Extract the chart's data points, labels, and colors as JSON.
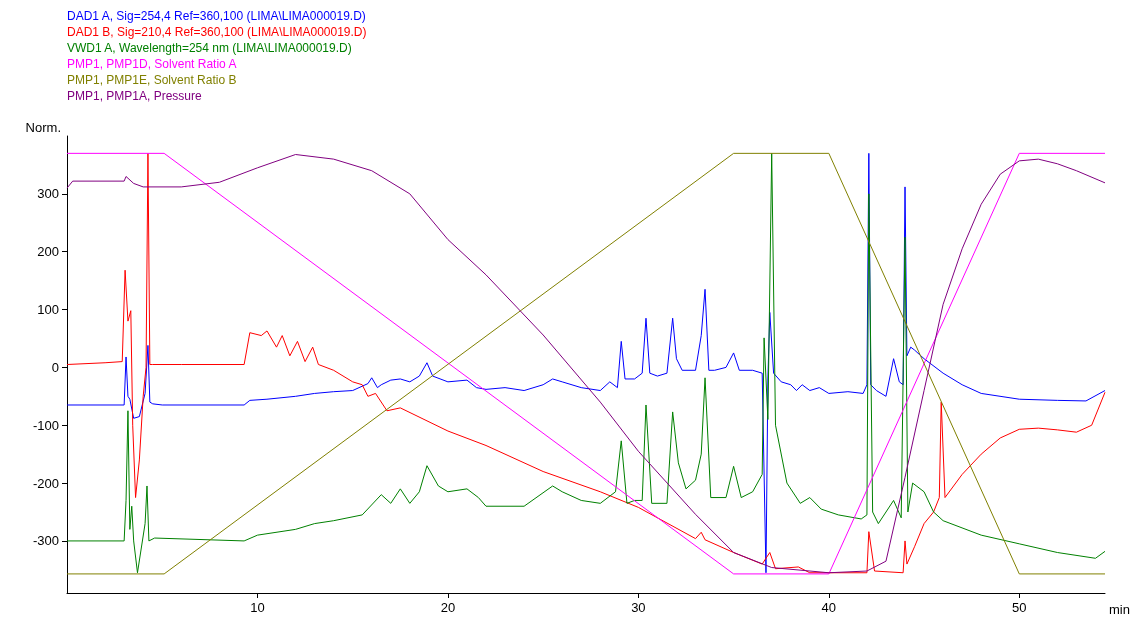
{
  "chart_data": {
    "type": "line",
    "ylabel": "Norm.",
    "xlabel": "min",
    "xlim": [
      0,
      54.5
    ],
    "xticks": [
      10,
      20,
      30,
      40,
      50
    ],
    "ylim": [
      -390,
      400
    ],
    "yticks": [
      -300,
      -200,
      -100,
      0,
      100,
      200,
      300
    ],
    "grid": false,
    "legend": "top left",
    "marker": "none",
    "line_style": "solid",
    "series": [
      {
        "name": "DAD1 A, Sig=254,4 Ref=360,100 (LIMA\\LIMA000019.D)",
        "color": "#0000ff",
        "x": [
          0,
          3,
          3.1,
          3.2,
          3.3,
          3.5,
          3.8,
          4.1,
          4.25,
          4.35,
          4.5,
          5,
          9.3,
          9.6,
          10.5,
          12,
          13,
          14,
          15,
          15.8,
          16,
          16.3,
          16.5,
          17,
          17.5,
          18,
          18.5,
          18.9,
          19.2,
          20,
          21,
          21.5,
          22,
          23,
          24,
          25,
          25.5,
          26,
          27,
          28,
          28.5,
          28.9,
          29.1,
          29.3,
          29.8,
          30.2,
          30.4,
          30.6,
          31,
          31.5,
          31.8,
          32,
          32.3,
          33,
          33.3,
          33.5,
          33.7,
          34,
          34.6,
          35,
          35.3,
          36,
          36.5,
          36.7,
          36.8,
          36.9,
          37.1,
          37.5,
          38,
          38.3,
          38.6,
          39,
          39.5,
          40,
          41,
          41.8,
          42,
          42.1,
          42.2,
          42.5,
          43,
          43.4,
          43.7,
          43.9,
          44,
          44.1,
          44.3,
          44.5,
          45,
          46,
          47,
          48,
          50,
          52,
          53.5,
          54.5
        ],
        "values": [
          -65,
          -65,
          18,
          -50,
          -55,
          -88,
          -85,
          -45,
          38,
          -60,
          -63,
          -65,
          -65,
          -57,
          -55,
          -50,
          -45,
          -42,
          -40,
          -28,
          -18,
          -35,
          -30,
          -22,
          -20,
          -25,
          -15,
          8,
          -15,
          -25,
          -22,
          -35,
          -38,
          -35,
          -40,
          -30,
          -20,
          -25,
          -35,
          -40,
          -25,
          -35,
          45,
          -20,
          -20,
          -10,
          85,
          -10,
          -15,
          -10,
          85,
          15,
          -5,
          -5,
          55,
          135,
          -5,
          -5,
          0,
          25,
          -5,
          -5,
          -10,
          -355,
          -20,
          95,
          -10,
          -25,
          -30,
          -40,
          -30,
          -40,
          -35,
          -45,
          -42,
          -45,
          -30,
          370,
          -30,
          -40,
          -50,
          15,
          -25,
          -30,
          312,
          20,
          35,
          30,
          15,
          -10,
          -30,
          -45,
          -55,
          -57,
          -58,
          -40
        ]
      },
      {
        "name": "DAD1 B, Sig=210,4 Ref=360,100 (LIMA\\LIMA000019.D)",
        "color": "#ff0000",
        "x": [
          0,
          2,
          2.9,
          3.05,
          3.2,
          3.35,
          3.45,
          3.6,
          3.8,
          4.0,
          4.15,
          4.25,
          4.35,
          4.5,
          6,
          9.3,
          9.6,
          10.2,
          10.5,
          11,
          11.3,
          11.7,
          12.1,
          12.5,
          12.9,
          13.2,
          14,
          15,
          15.5,
          15.8,
          16.2,
          16.8,
          17.5,
          20,
          22,
          25,
          28,
          30,
          33,
          33.3,
          33.5,
          35,
          36.5,
          36.9,
          37.2,
          38.4,
          39,
          42,
          42.1,
          42.4,
          43.9,
          44.0,
          44.1,
          44.5,
          45,
          45.5,
          45.8,
          45.9,
          46.1,
          47,
          48,
          49,
          50,
          51,
          52,
          53,
          53.8,
          54.5
        ],
        "values": [
          5,
          8,
          10,
          168,
          80,
          98,
          -100,
          -225,
          -160,
          -50,
          0,
          370,
          5,
          5,
          5,
          5,
          60,
          55,
          63,
          35,
          55,
          20,
          45,
          10,
          35,
          5,
          -5,
          -25,
          -30,
          -50,
          -45,
          -75,
          -70,
          -110,
          -135,
          -180,
          -215,
          -242,
          -296,
          -285,
          -298,
          -320,
          -340,
          -320,
          -348,
          -345,
          -355,
          -355,
          -284,
          -352,
          -355,
          -300,
          -340,
          -310,
          -270,
          -250,
          -225,
          -60,
          -225,
          -185,
          -150,
          -122,
          -107,
          -105,
          -108,
          -112,
          -100,
          -43
        ]
      },
      {
        "name": "VWD1 A, Wavelength=254 nm (LIMA\\LIMA000019.D)",
        "color": "#008000",
        "x": [
          0,
          3,
          3.1,
          3.2,
          3.3,
          3.4,
          3.5,
          3.7,
          4.1,
          4.2,
          4.3,
          4.6,
          9.3,
          10,
          12,
          13,
          14,
          15.5,
          16.5,
          17,
          17.5,
          18,
          18.5,
          18.9,
          19.5,
          20,
          21,
          21.6,
          22,
          24,
          25.5,
          26,
          27,
          28,
          28.8,
          29.1,
          29.4,
          29.8,
          30.2,
          30.4,
          30.7,
          31.5,
          31.8,
          32.1,
          32.5,
          33,
          33.3,
          33.5,
          33.8,
          34.6,
          35,
          35.4,
          36,
          36.5,
          36.6,
          36.8,
          37,
          37.2,
          37.8,
          38.5,
          39,
          39.6,
          40.5,
          41.7,
          42,
          42.1,
          42.3,
          42.6,
          43.4,
          43.8,
          44,
          44.15,
          44.4,
          45,
          45.5,
          46,
          48,
          50,
          52,
          54,
          54.5
        ],
        "values": [
          -300,
          -300,
          -230,
          -75,
          -280,
          -240,
          -300,
          -355,
          -270,
          -205,
          -300,
          -295,
          -300,
          -290,
          -280,
          -270,
          -265,
          -255,
          -220,
          -235,
          -210,
          -235,
          -215,
          -170,
          -205,
          -215,
          -210,
          -225,
          -240,
          -240,
          -205,
          -215,
          -230,
          -235,
          -215,
          -127,
          -235,
          -230,
          -230,
          -65,
          -235,
          -235,
          -77,
          -165,
          -210,
          -195,
          -150,
          -18,
          -225,
          -225,
          -171,
          -225,
          -215,
          -185,
          51,
          -90,
          370,
          -100,
          -200,
          -235,
          -225,
          -245,
          -255,
          -262,
          -255,
          300,
          -250,
          -270,
          -230,
          -260,
          225,
          -250,
          -200,
          -215,
          -250,
          -265,
          -290,
          -305,
          -320,
          -330,
          -318
        ]
      },
      {
        "name": "PMP1, PMP1D, Solvent Ratio A",
        "color": "#ff00ff",
        "x": [
          0,
          5.1,
          35,
          40,
          50,
          54.5
        ],
        "values": [
          370,
          370,
          -357,
          -357,
          370,
          370
        ]
      },
      {
        "name": "PMP1, PMP1E, Solvent Ratio B",
        "color": "#808000",
        "x": [
          0,
          5.1,
          35,
          40,
          50,
          54.5
        ],
        "values": [
          -357,
          -357,
          370,
          370,
          -357,
          -357
        ]
      },
      {
        "name": "PMP1, PMP1A, Pressure",
        "color": "#800080",
        "x": [
          0,
          0.3,
          3,
          3.1,
          3.5,
          4,
          6,
          8,
          10,
          12,
          14,
          16,
          18,
          20,
          22,
          25,
          28,
          30,
          33,
          35,
          37,
          40,
          42,
          43,
          44,
          45,
          46,
          47,
          48,
          49,
          50,
          51,
          52,
          53,
          54.5
        ],
        "values": [
          310,
          322,
          322,
          330,
          318,
          312,
          312,
          320,
          345,
          368,
          360,
          340,
          300,
          221,
          160,
          56,
          -60,
          -145,
          -254,
          -320,
          -346,
          -355,
          -352,
          -335,
          -190,
          -40,
          109,
          205,
          282,
          334,
          357,
          360,
          352,
          340,
          319
        ]
      }
    ]
  }
}
